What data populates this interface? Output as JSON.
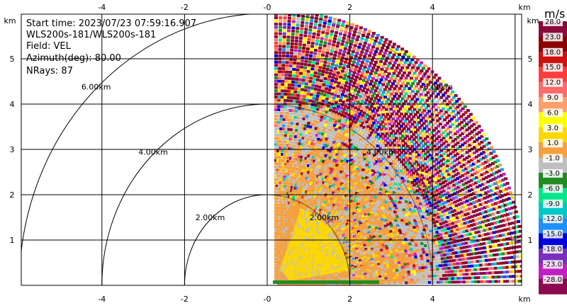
{
  "info": {
    "start_time": "Start time: 2023/07/23 07:59:16.907",
    "instrument": "WLS200s-181/WLS200s-181",
    "field": "Field: VEL",
    "azimuth": "Azimuth(deg): 80.00",
    "nrays": "NRays: 87"
  },
  "axes": {
    "x_ticks": [
      "-4",
      "-2",
      "-0",
      "2",
      "4"
    ],
    "y_ticks": [
      "1",
      "2",
      "3",
      "4",
      "5"
    ],
    "unit": "km"
  },
  "range_rings": [
    {
      "radius_km": 2,
      "label": "2.00km"
    },
    {
      "radius_km": 4,
      "label": "4.00km"
    },
    {
      "radius_km": 6,
      "label": "6.00km"
    }
  ],
  "colorbar": {
    "unit": "m/s",
    "labels": [
      "28.0",
      "23.0",
      "18.0",
      "15.0",
      "12.0",
      "9.0",
      "6.0",
      "3.0",
      "1.0",
      "-1.0",
      "-3.0",
      "-6.0",
      "-9.0",
      "-12.0",
      "-15.0",
      "-18.0",
      "-23.0",
      "-28.0"
    ],
    "colors": [
      "#8b0a3c",
      "#8b0000",
      "#d01010",
      "#ff3c3c",
      "#ff6a6a",
      "#ff9f6a",
      "#ffff00",
      "#ffd700",
      "#f4a040",
      "#bfbfbf",
      "#228b22",
      "#00e68a",
      "#00c8c8",
      "#1e90ff",
      "#0000dd",
      "#7b2fbe",
      "#c020c0",
      "#8b0a50"
    ]
  }
}
